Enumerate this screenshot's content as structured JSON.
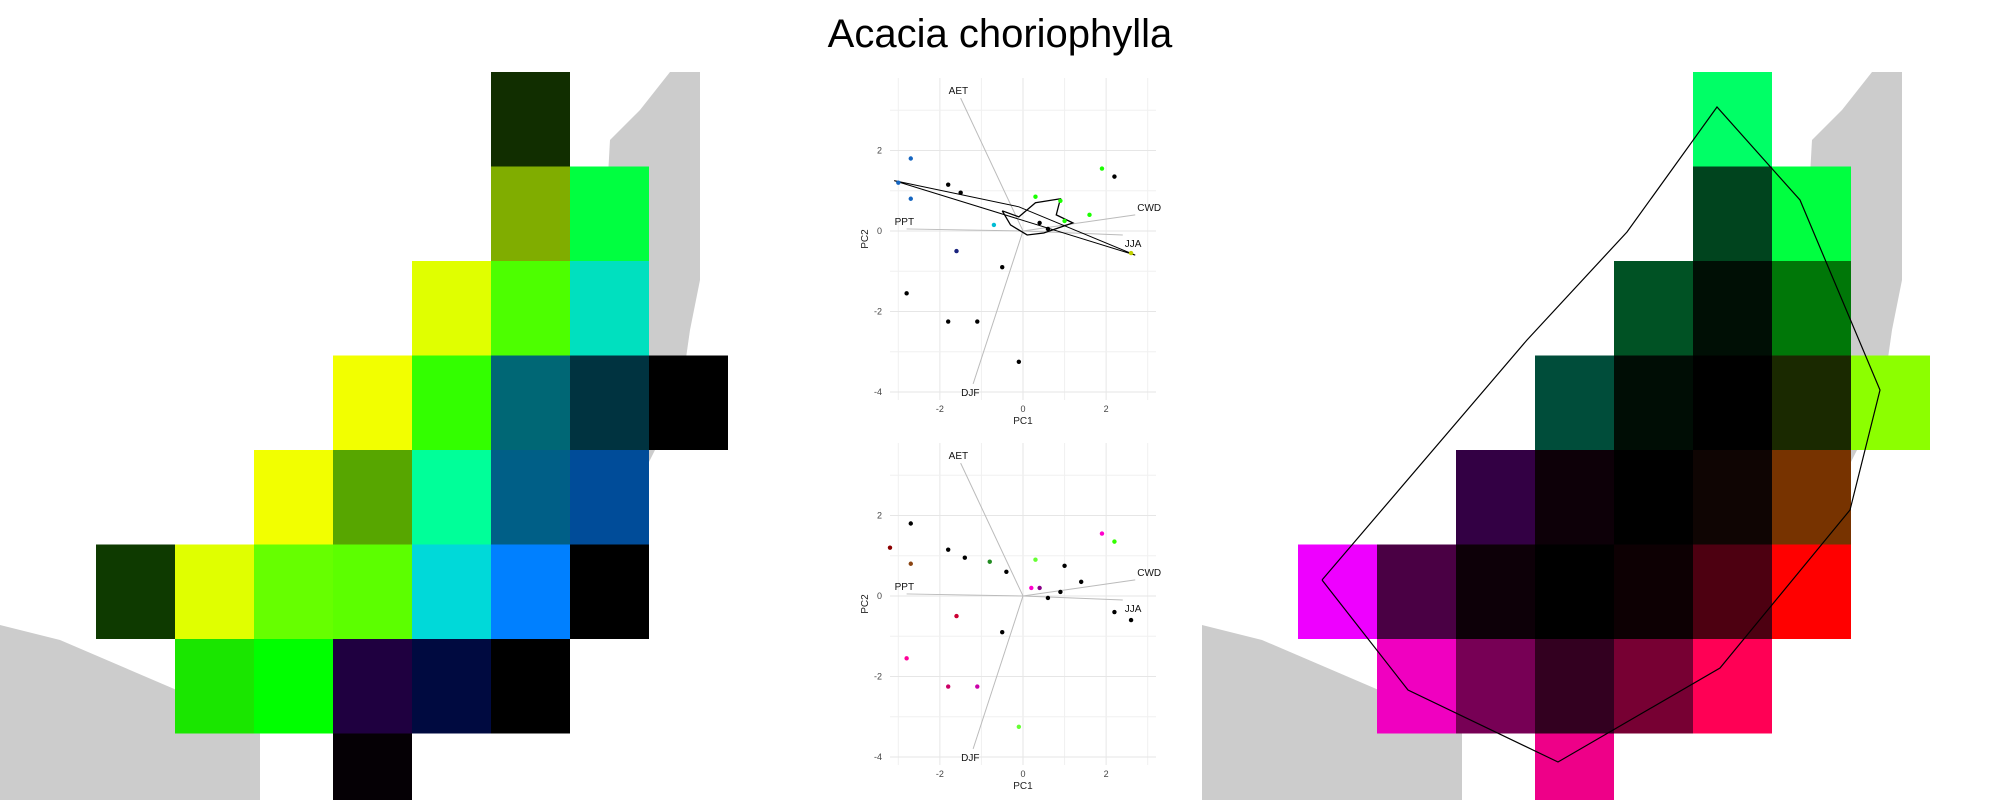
{
  "title": "Acacia choriophylla",
  "colors": {
    "land": "#cccccc",
    "grid": "#e6e6e6",
    "loading": "#bbbbbb",
    "hull": "#000000"
  },
  "chart_data": [
    {
      "type": "heatmap",
      "name": "left-map",
      "cells": [
        {
          "row": 0,
          "col": 5,
          "color": "#112e00"
        },
        {
          "row": 1,
          "col": 5,
          "color": "#80ad00"
        },
        {
          "row": 1,
          "col": 6,
          "color": "#00ff40"
        },
        {
          "row": 2,
          "col": 4,
          "color": "#e0ff00"
        },
        {
          "row": 2,
          "col": 5,
          "color": "#4dff00"
        },
        {
          "row": 2,
          "col": 6,
          "color": "#00e0bf"
        },
        {
          "row": 3,
          "col": 3,
          "color": "#f2ff00"
        },
        {
          "row": 3,
          "col": 4,
          "color": "#33ff00"
        },
        {
          "row": 3,
          "col": 5,
          "color": "#006775"
        },
        {
          "row": 3,
          "col": 6,
          "color": "#003340"
        },
        {
          "row": 3,
          "col": 7,
          "color": "#000000"
        },
        {
          "row": 4,
          "col": 2,
          "color": "#f2ff00"
        },
        {
          "row": 4,
          "col": 3,
          "color": "#57a600"
        },
        {
          "row": 4,
          "col": 4,
          "color": "#00ff99"
        },
        {
          "row": 4,
          "col": 5,
          "color": "#005f87"
        },
        {
          "row": 4,
          "col": 6,
          "color": "#004c99"
        },
        {
          "row": 5,
          "col": 0,
          "color": "#0e3a00"
        },
        {
          "row": 5,
          "col": 1,
          "color": "#e0ff00"
        },
        {
          "row": 5,
          "col": 2,
          "color": "#66ff00"
        },
        {
          "row": 5,
          "col": 3,
          "color": "#5cff00"
        },
        {
          "row": 5,
          "col": 4,
          "color": "#00d9d9"
        },
        {
          "row": 5,
          "col": 5,
          "color": "#0080ff"
        },
        {
          "row": 5,
          "col": 6,
          "color": "#000000"
        },
        {
          "row": 6,
          "col": 1,
          "color": "#1ae600"
        },
        {
          "row": 6,
          "col": 2,
          "color": "#00ff00"
        },
        {
          "row": 6,
          "col": 3,
          "color": "#1f0040"
        },
        {
          "row": 6,
          "col": 4,
          "color": "#000a40"
        },
        {
          "row": 6,
          "col": 5,
          "color": "#000000"
        },
        {
          "row": 7,
          "col": 3,
          "color": "#050005"
        }
      ]
    },
    {
      "type": "scatter",
      "name": "pca-top",
      "xlabel": "PC1",
      "ylabel": "PC2",
      "xticks": [
        -2,
        0,
        2
      ],
      "yticks": [
        -4,
        -2,
        0,
        2
      ],
      "xlim": [
        -3.2,
        3.2
      ],
      "ylim": [
        -4.2,
        3.8
      ],
      "vectors": [
        {
          "label": "AET",
          "x": -1.5,
          "y": 3.3
        },
        {
          "label": "CWD",
          "x": 2.7,
          "y": 0.4
        },
        {
          "label": "JJA",
          "x": 2.4,
          "y": -0.1
        },
        {
          "label": "PPT",
          "x": -2.8,
          "y": 0.05
        },
        {
          "label": "DJF",
          "x": -1.2,
          "y": -3.8
        }
      ],
      "points": [
        {
          "x": -2.7,
          "y": 1.8,
          "color": "#1565c0"
        },
        {
          "x": -3.0,
          "y": 1.2,
          "color": "#1565c0"
        },
        {
          "x": -2.7,
          "y": 0.8,
          "color": "#1565c0"
        },
        {
          "x": -1.8,
          "y": 1.15,
          "color": "#000000"
        },
        {
          "x": -1.5,
          "y": 0.95,
          "color": "#000000"
        },
        {
          "x": -0.7,
          "y": 0.15,
          "color": "#00bcd4"
        },
        {
          "x": 0.3,
          "y": 0.85,
          "color": "#1aff00"
        },
        {
          "x": 0.9,
          "y": 0.75,
          "color": "#1aff00"
        },
        {
          "x": 0.4,
          "y": 0.2,
          "color": "#000000"
        },
        {
          "x": 0.6,
          "y": 0.05,
          "color": "#000000"
        },
        {
          "x": 1.0,
          "y": 0.25,
          "color": "#1aff00"
        },
        {
          "x": 1.6,
          "y": 0.4,
          "color": "#1aff00"
        },
        {
          "x": 1.9,
          "y": 1.55,
          "color": "#1aff00"
        },
        {
          "x": 2.2,
          "y": 1.35,
          "color": "#000000"
        },
        {
          "x": 2.6,
          "y": -0.55,
          "color": "#c0d000"
        },
        {
          "x": -1.6,
          "y": -0.5,
          "color": "#1a237e"
        },
        {
          "x": -0.5,
          "y": -0.9,
          "color": "#000000"
        },
        {
          "x": -2.8,
          "y": -1.55,
          "color": "#000000"
        },
        {
          "x": -1.8,
          "y": -2.25,
          "color": "#000000"
        },
        {
          "x": -1.1,
          "y": -2.25,
          "color": "#000000"
        },
        {
          "x": -0.1,
          "y": -3.25,
          "color": "#000000"
        }
      ],
      "hull": [
        [
          -3.1,
          1.25
        ],
        [
          2.7,
          -0.6
        ],
        [
          -0.1,
          0.6
        ],
        [
          -3.1,
          1.25
        ]
      ],
      "blob": [
        [
          -0.5,
          0.5
        ],
        [
          -0.1,
          0.35
        ],
        [
          0.3,
          0.7
        ],
        [
          0.9,
          0.8
        ],
        [
          0.8,
          0.4
        ],
        [
          1.2,
          0.2
        ],
        [
          0.5,
          -0.05
        ],
        [
          0.1,
          -0.1
        ],
        [
          -0.3,
          0.15
        ],
        [
          -0.5,
          0.5
        ]
      ]
    },
    {
      "type": "scatter",
      "name": "pca-bottom",
      "xlabel": "PC1",
      "ylabel": "PC2",
      "xticks": [
        -2,
        0,
        2
      ],
      "yticks": [
        -4,
        -2,
        0,
        2
      ],
      "xlim": [
        -3.2,
        3.2
      ],
      "ylim": [
        -4.2,
        3.8
      ],
      "vectors": [
        {
          "label": "AET",
          "x": -1.5,
          "y": 3.3
        },
        {
          "label": "CWD",
          "x": 2.7,
          "y": 0.4
        },
        {
          "label": "JJA",
          "x": 2.4,
          "y": -0.1
        },
        {
          "label": "PPT",
          "x": -2.8,
          "y": 0.05
        },
        {
          "label": "DJF",
          "x": -1.2,
          "y": -3.8
        }
      ],
      "points": [
        {
          "x": -3.2,
          "y": 1.2,
          "color": "#8b0000"
        },
        {
          "x": -2.7,
          "y": 1.8,
          "color": "#000000"
        },
        {
          "x": -2.7,
          "y": 0.8,
          "color": "#8b4513"
        },
        {
          "x": -1.8,
          "y": 1.15,
          "color": "#000000"
        },
        {
          "x": -1.4,
          "y": 0.95,
          "color": "#000000"
        },
        {
          "x": -0.8,
          "y": 0.85,
          "color": "#228b22"
        },
        {
          "x": -0.4,
          "y": 0.6,
          "color": "#000000"
        },
        {
          "x": 0.3,
          "y": 0.9,
          "color": "#66ff33"
        },
        {
          "x": 0.2,
          "y": 0.2,
          "color": "#ff00cc"
        },
        {
          "x": 0.4,
          "y": 0.2,
          "color": "#880088"
        },
        {
          "x": 0.6,
          "y": -0.05,
          "color": "#000000"
        },
        {
          "x": 0.9,
          "y": 0.1,
          "color": "#000000"
        },
        {
          "x": 1.0,
          "y": 0.75,
          "color": "#000000"
        },
        {
          "x": 1.4,
          "y": 0.35,
          "color": "#000000"
        },
        {
          "x": 1.9,
          "y": 1.55,
          "color": "#ff00cc"
        },
        {
          "x": 2.2,
          "y": 1.35,
          "color": "#33ff00"
        },
        {
          "x": 2.2,
          "y": -0.4,
          "color": "#000000"
        },
        {
          "x": 2.6,
          "y": -0.6,
          "color": "#000000"
        },
        {
          "x": -1.6,
          "y": -0.5,
          "color": "#cc0033"
        },
        {
          "x": -0.5,
          "y": -0.9,
          "color": "#000000"
        },
        {
          "x": -2.8,
          "y": -1.55,
          "color": "#ff0099"
        },
        {
          "x": -1.8,
          "y": -2.25,
          "color": "#cc0066"
        },
        {
          "x": -1.1,
          "y": -2.25,
          "color": "#cc00aa"
        },
        {
          "x": -0.1,
          "y": -3.25,
          "color": "#66ff33"
        }
      ]
    },
    {
      "type": "heatmap",
      "name": "right-map",
      "cells": [
        {
          "row": 0,
          "col": 5,
          "color": "#00ff66"
        },
        {
          "row": 1,
          "col": 5,
          "color": "#00441e"
        },
        {
          "row": 1,
          "col": 6,
          "color": "#00ff40"
        },
        {
          "row": 2,
          "col": 4,
          "color": "#005224"
        },
        {
          "row": 2,
          "col": 5,
          "color": "#000f05"
        },
        {
          "row": 2,
          "col": 6,
          "color": "#007708"
        },
        {
          "row": 3,
          "col": 3,
          "color": "#004d3a"
        },
        {
          "row": 3,
          "col": 4,
          "color": "#000d05"
        },
        {
          "row": 3,
          "col": 5,
          "color": "#000000"
        },
        {
          "row": 3,
          "col": 6,
          "color": "#1a2900"
        },
        {
          "row": 3,
          "col": 7,
          "color": "#8cff00"
        },
        {
          "row": 4,
          "col": 2,
          "color": "#330044"
        },
        {
          "row": 4,
          "col": 3,
          "color": "#0d0008"
        },
        {
          "row": 4,
          "col": 4,
          "color": "#000000"
        },
        {
          "row": 4,
          "col": 5,
          "color": "#0f0503"
        },
        {
          "row": 4,
          "col": 6,
          "color": "#773300"
        },
        {
          "row": 5,
          "col": 0,
          "color": "#ee00ff"
        },
        {
          "row": 5,
          "col": 1,
          "color": "#4a0044"
        },
        {
          "row": 5,
          "col": 2,
          "color": "#0d0008"
        },
        {
          "row": 5,
          "col": 3,
          "color": "#000000"
        },
        {
          "row": 5,
          "col": 4,
          "color": "#0d0003"
        },
        {
          "row": 5,
          "col": 5,
          "color": "#4d0011"
        },
        {
          "row": 5,
          "col": 6,
          "color": "#ff0000"
        },
        {
          "row": 6,
          "col": 1,
          "color": "#f000c0"
        },
        {
          "row": 6,
          "col": 2,
          "color": "#770055"
        },
        {
          "row": 6,
          "col": 3,
          "color": "#330020"
        },
        {
          "row": 6,
          "col": 4,
          "color": "#770033"
        },
        {
          "row": 6,
          "col": 5,
          "color": "#ff0055"
        },
        {
          "row": 7,
          "col": 3,
          "color": "#ee0088"
        }
      ]
    }
  ]
}
